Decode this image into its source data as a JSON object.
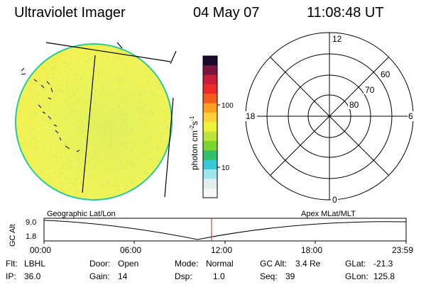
{
  "header": {
    "title": "Ultraviolet Imager",
    "date": "04 May 07",
    "time": "11:08:48 UT"
  },
  "colorbar": {
    "unit_label": "photon cm",
    "unit_exp1": "-2",
    "unit_s": "s",
    "unit_exp2": "-1",
    "ticks": [
      "100",
      "10"
    ],
    "colors": [
      "#1a0b2e",
      "#7a1540",
      "#c81e3a",
      "#ee2a2a",
      "#f55e1a",
      "#fba020",
      "#fdd03a",
      "#eef238",
      "#bce43a",
      "#7cd42e",
      "#34c06a",
      "#38c8d8",
      "#9ee6ee",
      "#e0eef0",
      "#f6f8f8"
    ]
  },
  "image": {
    "fill_color": "#e9f25a",
    "edge_color": "#28c8a0"
  },
  "polar": {
    "mlt_labels": [
      "12",
      "18",
      "6",
      "0"
    ],
    "lat_labels": [
      "60",
      "70",
      "80"
    ]
  },
  "orbit": {
    "ylabel": "GC Alt",
    "left_title": "Geographic Lat/Lon",
    "right_title": "Apex MLat/MLT",
    "y_ticks": [
      "9.0",
      "1.8"
    ],
    "x_ticks": [
      "00:00",
      "06:00",
      "12:00",
      "18:00",
      "23:59"
    ],
    "marker_color": "#cc2222"
  },
  "status": {
    "row1": [
      {
        "label": "Flt:",
        "value": "LBHL"
      },
      {
        "label": "Door:",
        "value": "Open"
      },
      {
        "label": "Mode:",
        "value": "Normal"
      },
      {
        "label": "GC Alt:",
        "value": "3.4 Re"
      },
      {
        "label": "GLat:",
        "value": "-21.3"
      }
    ],
    "row2": [
      {
        "label": "IP:",
        "value": "36.0"
      },
      {
        "label": "Gain:",
        "value": "14"
      },
      {
        "label": "Dsp:",
        "value": "1.0"
      },
      {
        "label": "Seq:",
        "value": "39"
      },
      {
        "label": "GLon:",
        "value": "125.8"
      }
    ]
  }
}
